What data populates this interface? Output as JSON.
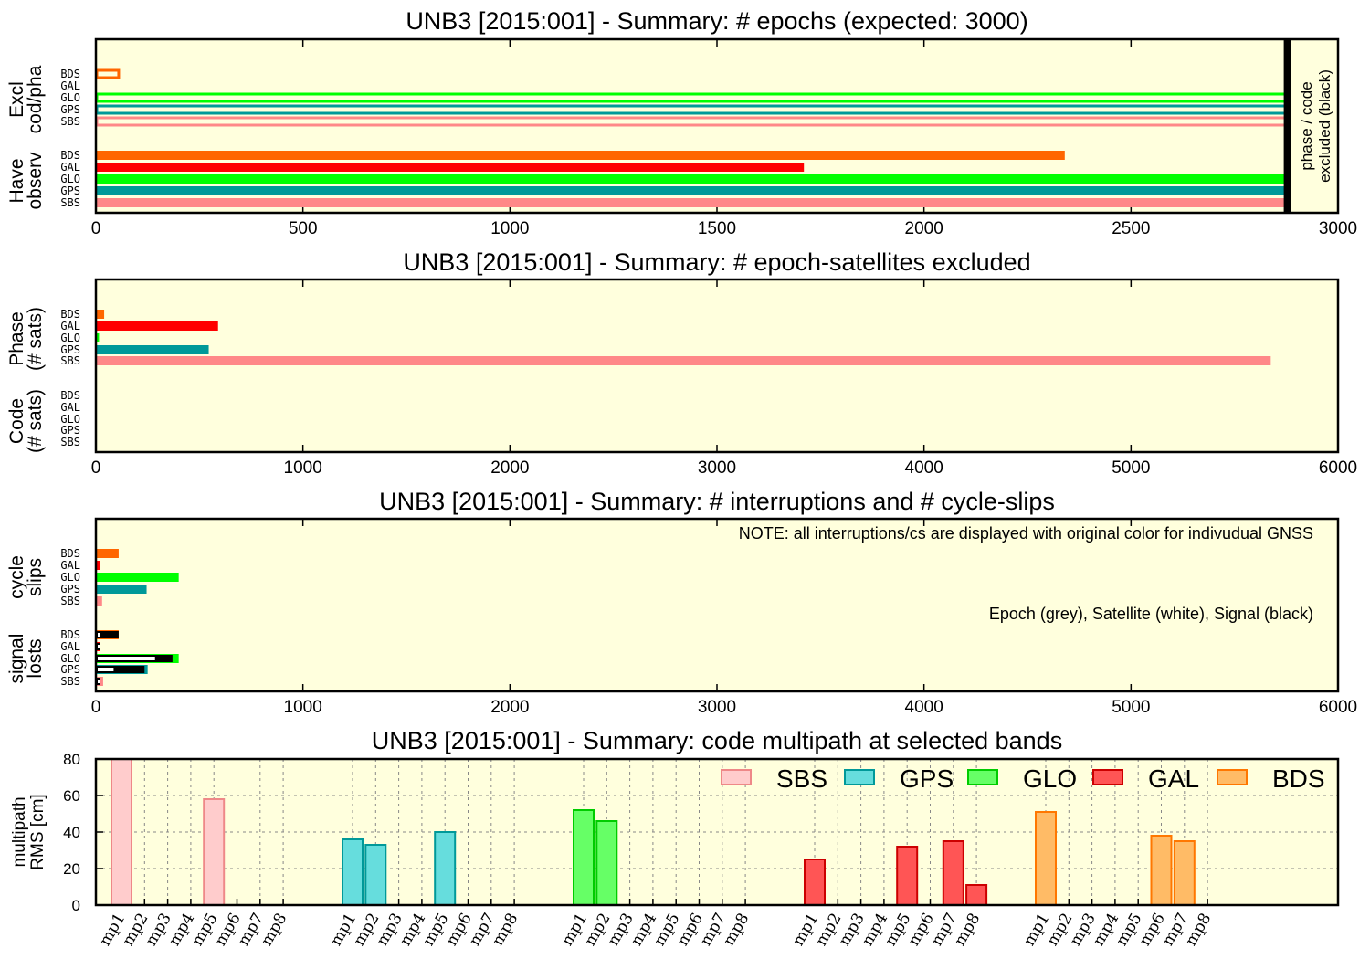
{
  "colors": {
    "BDS": "#ff6600",
    "GAL": "#ff0000",
    "GLO": "#00ff00",
    "GPS": "#009999",
    "SBS": "#ff8888",
    "background": "#ffffdd",
    "epoch": "#aaaaaa",
    "satellite": "#ffffff",
    "signal": "#000000"
  },
  "chart_data": [
    {
      "type": "bar",
      "orientation": "horizontal",
      "title": "UNB3 [2015:001] - Summary: # epochs (expected: 3000)",
      "xlim": [
        0,
        3000
      ],
      "xticks": [
        0,
        500,
        1000,
        1500,
        2000,
        2500,
        3000
      ],
      "groups": [
        {
          "label_lines": [
            "Excl",
            "cod/pha"
          ],
          "series": [
            {
              "name": "BDS",
              "value": 55,
              "style": "outline"
            },
            {
              "name": "GAL",
              "value": 0,
              "style": "outline"
            },
            {
              "name": "GLO",
              "value": 2875,
              "style": "outline"
            },
            {
              "name": "GPS",
              "value": 2875,
              "style": "outline"
            },
            {
              "name": "SBS",
              "value": 2875,
              "style": "outline"
            }
          ]
        },
        {
          "label_lines": [
            "Have",
            "observ"
          ],
          "series": [
            {
              "name": "BDS",
              "value": 2340,
              "style": "solid"
            },
            {
              "name": "GAL",
              "value": 1710,
              "style": "solid"
            },
            {
              "name": "GLO",
              "value": 2875,
              "style": "solid"
            },
            {
              "name": "GPS",
              "value": 2875,
              "style": "solid"
            },
            {
              "name": "SBS",
              "value": 2875,
              "style": "solid"
            }
          ]
        }
      ],
      "marker_x": 2880,
      "side_note_lines": [
        "phase / code",
        "excluded (black)"
      ]
    },
    {
      "type": "bar",
      "orientation": "horizontal",
      "title": "UNB3 [2015:001] - Summary: # epoch-satellites excluded",
      "xlim": [
        0,
        6000
      ],
      "xticks": [
        0,
        1000,
        2000,
        3000,
        4000,
        5000,
        6000
      ],
      "groups": [
        {
          "label_lines": [
            "Phase",
            "(# sats)"
          ],
          "series": [
            {
              "name": "BDS",
              "value": 40,
              "style": "solid"
            },
            {
              "name": "GAL",
              "value": 590,
              "style": "solid"
            },
            {
              "name": "GLO",
              "value": 15,
              "style": "solid"
            },
            {
              "name": "GPS",
              "value": 545,
              "style": "solid"
            },
            {
              "name": "SBS",
              "value": 5675,
              "style": "solid"
            }
          ]
        },
        {
          "label_lines": [
            "Code",
            "(# sats)"
          ],
          "series": [
            {
              "name": "BDS",
              "value": 0,
              "style": "solid"
            },
            {
              "name": "GAL",
              "value": 0,
              "style": "solid"
            },
            {
              "name": "GLO",
              "value": 0,
              "style": "solid"
            },
            {
              "name": "GPS",
              "value": 0,
              "style": "solid"
            },
            {
              "name": "SBS",
              "value": 0,
              "style": "solid"
            }
          ]
        }
      ]
    },
    {
      "type": "bar",
      "orientation": "horizontal",
      "title": "UNB3 [2015:001] - Summary: # interruptions and # cycle-slips",
      "xlim": [
        0,
        6000
      ],
      "xticks": [
        0,
        1000,
        2000,
        3000,
        4000,
        5000,
        6000
      ],
      "notes": [
        "NOTE: all interruptions/cs are displayed with original color for indivudual GNSS",
        "Epoch (grey), Satellite (white), Signal (black)"
      ],
      "groups": [
        {
          "label_lines": [
            "cycle",
            "slips"
          ],
          "series": [
            {
              "name": "BDS",
              "value": 110,
              "style": "solid"
            },
            {
              "name": "GAL",
              "value": 20,
              "style": "solid"
            },
            {
              "name": "GLO",
              "value": 400,
              "style": "solid"
            },
            {
              "name": "GPS",
              "value": 245,
              "style": "solid"
            },
            {
              "name": "SBS",
              "value": 30,
              "style": "solid"
            }
          ]
        },
        {
          "label_lines": [
            "signal",
            "losts"
          ],
          "series": [
            {
              "name": "BDS",
              "value": 110,
              "satellite": 10,
              "signal": 110,
              "style": "stacked"
            },
            {
              "name": "GAL",
              "value": 20,
              "satellite": 20,
              "signal": 20,
              "style": "stacked"
            },
            {
              "name": "GLO",
              "value": 400,
              "satellite": 290,
              "signal": 370,
              "style": "stacked"
            },
            {
              "name": "GPS",
              "value": 250,
              "satellite": 90,
              "signal": 235,
              "style": "stacked"
            },
            {
              "name": "SBS",
              "value": 35,
              "satellite": 10,
              "signal": 20,
              "style": "stacked"
            }
          ]
        }
      ]
    },
    {
      "type": "bar",
      "orientation": "vertical",
      "title": "UNB3 [2015:001] - Summary: code multipath at selected bands",
      "ylabel_lines": [
        "multipath",
        "RMS [cm]"
      ],
      "ylim": [
        0,
        80
      ],
      "yticks": [
        0,
        20,
        40,
        60,
        80
      ],
      "grid": true,
      "legend_position": "top-right",
      "categories": [
        "mp1",
        "mp2",
        "mp3",
        "mp4",
        "mp5",
        "mp6",
        "mp7",
        "mp8"
      ],
      "series": [
        {
          "name": "SBS",
          "fill": "#ffcccc",
          "stroke": "#ee8888",
          "values": [
            80,
            0,
            0,
            0,
            58,
            0,
            0,
            0
          ]
        },
        {
          "name": "GPS",
          "fill": "#66dddd",
          "stroke": "#009999",
          "values": [
            36,
            33,
            0,
            0,
            40,
            0,
            0,
            0
          ]
        },
        {
          "name": "GLO",
          "fill": "#66ff66",
          "stroke": "#00cc00",
          "values": [
            52,
            46,
            0,
            0,
            0,
            0,
            0,
            0
          ]
        },
        {
          "name": "GAL",
          "fill": "#ff5555",
          "stroke": "#cc0000",
          "values": [
            25,
            0,
            0,
            0,
            32,
            0,
            35,
            11
          ]
        },
        {
          "name": "BDS",
          "fill": "#ffbb66",
          "stroke": "#ff7700",
          "values": [
            51,
            0,
            0,
            0,
            0,
            38,
            35,
            0
          ]
        }
      ]
    }
  ]
}
